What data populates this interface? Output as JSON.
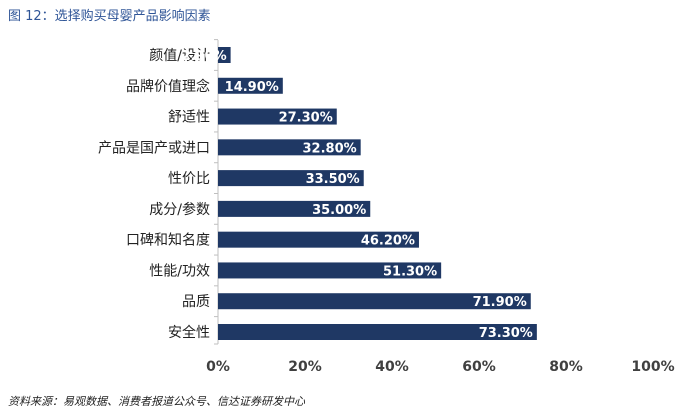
{
  "figure": {
    "title": "图 12：选择购买母婴产品影响因素",
    "source": "资料来源：易观数据、消费者报道公众号、信达证券研发中心"
  },
  "chart_data": {
    "type": "bar",
    "orientation": "horizontal",
    "title": "",
    "xlabel": "",
    "ylabel": "",
    "categories": [
      "颜值/设计",
      "品牌价值理念",
      "舒适性",
      "产品是国产或进口",
      "性价比",
      "成分/参数",
      "口碑和知名度",
      "性能/功效",
      "品质",
      "安全性"
    ],
    "values": [
      2.9,
      14.9,
      27.3,
      32.8,
      33.5,
      35.0,
      46.2,
      51.3,
      71.9,
      73.3
    ],
    "value_labels": [
      "2.90%",
      "14.90%",
      "27.30%",
      "32.80%",
      "33.50%",
      "35.00%",
      "46.20%",
      "51.30%",
      "71.90%",
      "73.30%"
    ],
    "xlim": [
      0,
      100
    ],
    "x_ticks": [
      0,
      20,
      40,
      60,
      80,
      100
    ],
    "x_tick_labels": [
      "0%",
      "20%",
      "40%",
      "60%",
      "80%",
      "100%"
    ],
    "grid": false,
    "legend": "none",
    "bar_color": "#1f3864",
    "axis_color": "#bfbfbf"
  }
}
